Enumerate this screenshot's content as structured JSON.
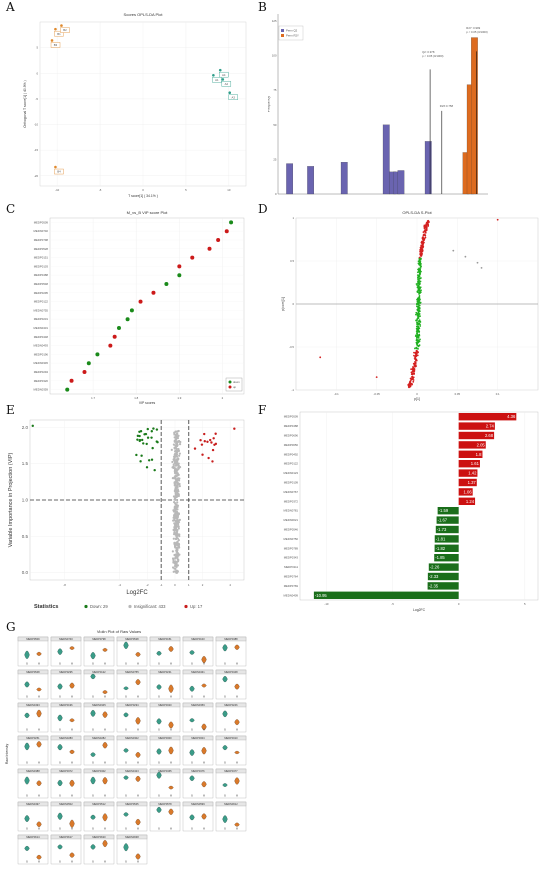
{
  "figure": {
    "panel_labels": [
      "A",
      "B",
      "C",
      "D",
      "E",
      "F",
      "G"
    ]
  },
  "chart_data": [
    {
      "id": "A",
      "type": "scatter",
      "title": "Scores OPLS-DA Plot",
      "xlabel": "T score[1] ( 34.1% )",
      "ylabel": "Orthogonal T score[1] ( 40.9% )",
      "xlim": [
        -12,
        12
      ],
      "ylim": [
        -22,
        10
      ],
      "x_ticks": [
        -10,
        -5,
        0,
        5,
        10
      ],
      "y_ticks": [
        -20,
        -15,
        -10,
        -5,
        0,
        5
      ],
      "series": [
        {
          "color": "#e08a2e",
          "points": [
            {
              "x": -10.2,
              "y": 8.6
            },
            {
              "x": -9.5,
              "y": 9.3
            },
            {
              "x": -10.6,
              "y": 6.4
            },
            {
              "x": -10.2,
              "y": -18.3
            }
          ]
        },
        {
          "color": "#2e9e8a",
          "points": [
            {
              "x": 8.2,
              "y": -0.4
            },
            {
              "x": 9.3,
              "y": -1.2
            },
            {
              "x": 10.1,
              "y": -3.8
            },
            {
              "x": 9.0,
              "y": 0.6
            }
          ]
        }
      ],
      "point_labels": [
        "B1",
        "B2",
        "B3",
        "B4",
        "A1",
        "A2",
        "A3",
        "A4"
      ]
    },
    {
      "id": "B",
      "type": "bar",
      "ylabel": "Frequency",
      "ylim": [
        0,
        120
      ],
      "y_ticks": [
        0,
        25,
        50,
        75,
        100,
        125
      ],
      "legend": [
        "Perm Q2",
        "Perm R2Y"
      ],
      "colors": [
        "#6a64b0",
        "#dd6b1f"
      ],
      "series": [
        {
          "name": "Perm Q2",
          "bars": [
            {
              "x": 0.02,
              "y": 22
            },
            {
              "x": 0.07,
              "y": 20
            },
            {
              "x": 0.15,
              "y": 23
            },
            {
              "x": 0.25,
              "y": 50
            },
            {
              "x": 0.265,
              "y": 16
            },
            {
              "x": 0.275,
              "y": 16
            },
            {
              "x": 0.285,
              "y": 17
            },
            {
              "x": 0.35,
              "y": 38
            }
          ]
        },
        {
          "name": "Perm R2Y",
          "bars": [
            {
              "x": 0.44,
              "y": 30
            },
            {
              "x": 0.45,
              "y": 79
            },
            {
              "x": 0.46,
              "y": 113
            }
          ]
        }
      ],
      "annotations": [
        "Q2: 0.978\np < 0.05 (0/1000)",
        "R2Y: 0.999\np < 0.05 (0/1000)",
        "R2X:0.758"
      ]
    },
    {
      "id": "C",
      "type": "scatter",
      "title": "M_vs_B VIP score Plot",
      "xlabel": "VIP scores",
      "xlim": [
        1.6,
        2.05
      ],
      "x_ticks": [
        1.7,
        1.8,
        1.9,
        2.0
      ],
      "categories": [
        "MEDP0509",
        "MEDN0740",
        "MEDP0798",
        "MEDP0528",
        "MEDP0151",
        "MEDP0103",
        "MEDP0488",
        "MEDP0548",
        "MEDP0295",
        "MEDP0122",
        "MEDN0755",
        "MEDP0231",
        "MEDN0431",
        "MEDP0448",
        "MEDN0493",
        "MEDP0196",
        "MEDN0345",
        "MEDP0294",
        "MEDP0320",
        "MEDN0359"
      ],
      "values": [
        2.02,
        2.01,
        1.99,
        1.97,
        1.93,
        1.9,
        1.9,
        1.87,
        1.84,
        1.81,
        1.79,
        1.78,
        1.76,
        1.75,
        1.74,
        1.71,
        1.69,
        1.68,
        1.65,
        1.64
      ],
      "groups": [
        "down",
        "up",
        "up",
        "up",
        "up",
        "up",
        "down",
        "down",
        "up",
        "up",
        "down",
        "down",
        "down",
        "up",
        "up",
        "down",
        "down",
        "up",
        "up",
        "down"
      ],
      "legend": [
        "down",
        "up"
      ],
      "colors": {
        "down": "#1a8a1a",
        "up": "#cc1a1a"
      }
    },
    {
      "id": "D",
      "type": "scatter",
      "title": "OPLS-DA S-Plot",
      "xlabel": "p[1]",
      "ylabel": "p(corr)[1]",
      "xlim": [
        -0.15,
        0.15
      ],
      "ylim": [
        -1,
        1
      ],
      "x_ticks": [
        -0.1,
        -0.05,
        0,
        0.05,
        0.1
      ],
      "y_ticks": [
        -1.0,
        -0.5,
        0,
        0.5,
        1.0
      ],
      "colors": {
        "up": "#d42020",
        "ns": "#20b020",
        "grey": "#9a9a9a"
      }
    },
    {
      "id": "E",
      "type": "scatter",
      "xlabel": "Log2FC",
      "ylabel": "Variable Importance in Projection (VIP)",
      "xlim": [
        -10.5,
        5
      ],
      "ylim": [
        -0.1,
        2.1
      ],
      "x_ticks": [
        -8,
        -4,
        -2,
        -1,
        0,
        1,
        2,
        4
      ],
      "y_ticks": [
        0.0,
        0.5,
        1.0,
        1.5,
        2.0
      ],
      "thresholds": {
        "vip": 1,
        "fc": [
          -1,
          1
        ]
      },
      "legend_title": "Statistics",
      "legend": [
        "Down: 29",
        "Insignificant: 433",
        "Up: 17"
      ],
      "colors": {
        "down": "#1a7a1a",
        "ns": "#b8b8b8",
        "up": "#c81e1e"
      }
    },
    {
      "id": "F",
      "type": "bar",
      "xlabel": "Log2FC",
      "xlim": [
        -12,
        6
      ],
      "x_ticks": [
        -10,
        -5,
        0,
        5
      ],
      "categories": [
        "MEDP0509",
        "MEDP0488",
        "MEDP0696",
        "MEDP0656",
        "MEDP0492",
        "MEDP0122",
        "MEDN0123",
        "MEDP0109",
        "MEDN0767",
        "MEDP0372",
        "MEDN0781",
        "MEDN0021",
        "MEDP0546",
        "MEDN0750",
        "MEDP0789",
        "MEDP0343",
        "MEDP0111",
        "MEDP0764",
        "MEDP0769",
        "MEDN0409"
      ],
      "values": [
        4.36,
        2.74,
        2.68,
        2.05,
        1.8,
        1.61,
        1.42,
        1.37,
        1.06,
        1.24,
        -1.59,
        -1.67,
        -1.73,
        -1.81,
        -1.82,
        -1.85,
        -2.26,
        -2.33,
        -2.35,
        -10.95
      ],
      "colors": {
        "up": "#cc1111",
        "down": "#1a6e1a"
      }
    },
    {
      "id": "G",
      "type": "violin",
      "title": "Violin Plot of Raw Values",
      "ylabel": "Raw Intensity",
      "group_labels": [
        "B",
        "M"
      ],
      "colors": {
        "B": "#3a9c88",
        "M": "#d9792a"
      },
      "panels": [
        "MEDP0509",
        "MEDN0740",
        "MEDP0798",
        "MEDP0528",
        "MEDP0151",
        "MEDP0103",
        "MEDP0488",
        "MEDP0548",
        "MEDP0295",
        "MEDP0122",
        "MEDN0755",
        "MEDP0231",
        "MEDN0431",
        "MEDP0448",
        "MEDN0493",
        "MEDP0196",
        "MEDN0345",
        "MEDP0294",
        "MEDP0320",
        "MEDN0359",
        "MEDP0246",
        "MEDP0251",
        "MEDN0280",
        "MEDN0282",
        "MEDN0302",
        "MEDP0300",
        "MEDP0304",
        "MEDP0310",
        "MEDN0388",
        "MEDP0372",
        "MEDP0402",
        "MEDN0423",
        "MEDP0465",
        "MEDP0476",
        "MEDP0477",
        "MEDN0497",
        "MEDN0502",
        "MEDP0512",
        "MEDP0545",
        "MEDP0578",
        "MEDN0599",
        "MEDN0612",
        "MEDP0614",
        "MEDP0617",
        "MEDP0620",
        "MEDN0638"
      ]
    }
  ]
}
